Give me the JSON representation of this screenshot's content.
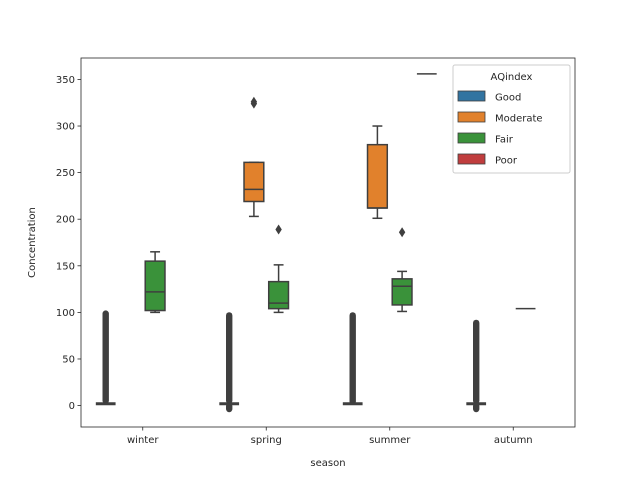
{
  "chart_data": {
    "type": "boxplot",
    "xlabel": "season",
    "ylabel": "Concentration",
    "categories": [
      "winter",
      "spring",
      "summer",
      "autumn"
    ],
    "ylim": [
      -23,
      373
    ],
    "yticks": [
      0,
      50,
      100,
      150,
      200,
      250,
      300,
      350
    ],
    "grid": false,
    "legend": {
      "title": "AQindex",
      "placement": "top-right",
      "entries": [
        {
          "name": "Good",
          "color": "#3274a1"
        },
        {
          "name": "Moderate",
          "color": "#e1812c"
        },
        {
          "name": "Fair",
          "color": "#3a923a"
        },
        {
          "name": "Poor",
          "color": "#c03d3e"
        }
      ]
    },
    "series": [
      {
        "name": "Good",
        "color": "#3274a1",
        "boxes": [
          {
            "category": "winter",
            "whisker_low": -1,
            "q1": 1,
            "median": 2,
            "q3": 4,
            "whisker_high": 7,
            "outlier_range": [
              7,
              100
            ]
          },
          {
            "category": "spring",
            "whisker_low": -3,
            "q1": 1,
            "median": 2,
            "q3": 4,
            "whisker_high": 7,
            "outlier_range": [
              -5,
              98
            ]
          },
          {
            "category": "summer",
            "whisker_low": -1,
            "q1": 1,
            "median": 2,
            "q3": 3,
            "whisker_high": 6,
            "outlier_range": [
              6,
              98
            ]
          },
          {
            "category": "autumn",
            "whisker_low": -2,
            "q1": 1,
            "median": 2,
            "q3": 4,
            "whisker_high": 7,
            "outlier_range": [
              -5,
              90
            ]
          }
        ]
      },
      {
        "name": "Moderate",
        "color": "#e1812c",
        "boxes": [
          {
            "category": "spring",
            "whisker_low": 203,
            "q1": 219,
            "median": 232,
            "q3": 261,
            "whisker_high": 261,
            "outliers": [
              324,
              326
            ]
          },
          {
            "category": "summer",
            "whisker_low": 201,
            "q1": 212,
            "median": 212,
            "q3": 280,
            "whisker_high": 300,
            "outliers": []
          }
        ]
      },
      {
        "name": "Fair",
        "color": "#3a923a",
        "boxes": [
          {
            "category": "winter",
            "whisker_low": 100,
            "q1": 102,
            "median": 122,
            "q3": 155,
            "whisker_high": 165,
            "outliers": []
          },
          {
            "category": "spring",
            "whisker_low": 100,
            "q1": 104,
            "median": 110,
            "q3": 133,
            "whisker_high": 151,
            "outliers": [
              189
            ]
          },
          {
            "category": "summer",
            "whisker_low": 101,
            "q1": 108,
            "median": 128,
            "q3": 136,
            "whisker_high": 144,
            "outliers": [
              186
            ]
          },
          {
            "category": "autumn",
            "whisker_low": 104,
            "q1": 104,
            "median": 104,
            "q3": 104,
            "whisker_high": 104,
            "outliers": []
          }
        ]
      },
      {
        "name": "Poor",
        "color": "#c03d3e",
        "boxes": [
          {
            "category": "summer",
            "whisker_low": 356,
            "q1": 356,
            "median": 356,
            "q3": 356,
            "whisker_high": 356,
            "outliers": []
          }
        ]
      }
    ]
  }
}
